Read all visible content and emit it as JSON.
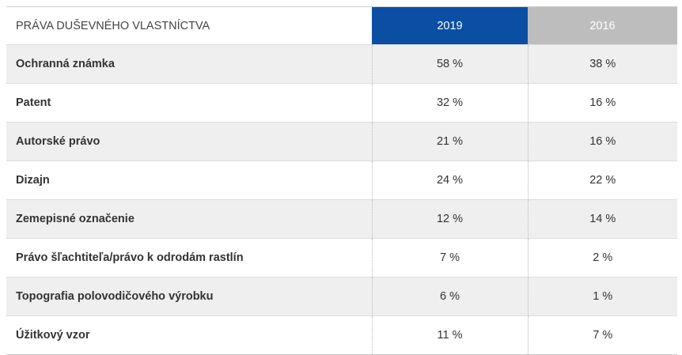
{
  "table": {
    "header": {
      "label": "PRÁVA DUŠEVNÉHO VLASTNÍCTVA",
      "col1": "2019",
      "col2": "2016"
    },
    "colors": {
      "col1_header": "#0a4fa3",
      "col2_header": "#bdbdbd"
    },
    "rows": [
      {
        "name": "Ochranná známka",
        "y2019": "58 %",
        "y2016": "38 %"
      },
      {
        "name": "Patent",
        "y2019": "32 %",
        "y2016": "16 %"
      },
      {
        "name": "Autorské právo",
        "y2019": "21 %",
        "y2016": "16 %"
      },
      {
        "name": "Dizajn",
        "y2019": "24 %",
        "y2016": "22 %"
      },
      {
        "name": "Zemepisné označenie",
        "y2019": "12 %",
        "y2016": "14 %"
      },
      {
        "name": "Právo šľachtiteľa/právo k odrodám rastlín",
        "y2019": "7 %",
        "y2016": "2 %"
      },
      {
        "name": "Topografia polovodičového výrobku",
        "y2019": "6 %",
        "y2016": "1 %"
      },
      {
        "name": "Úžitkový vzor",
        "y2019": "11 %",
        "y2016": "7 %"
      }
    ]
  }
}
